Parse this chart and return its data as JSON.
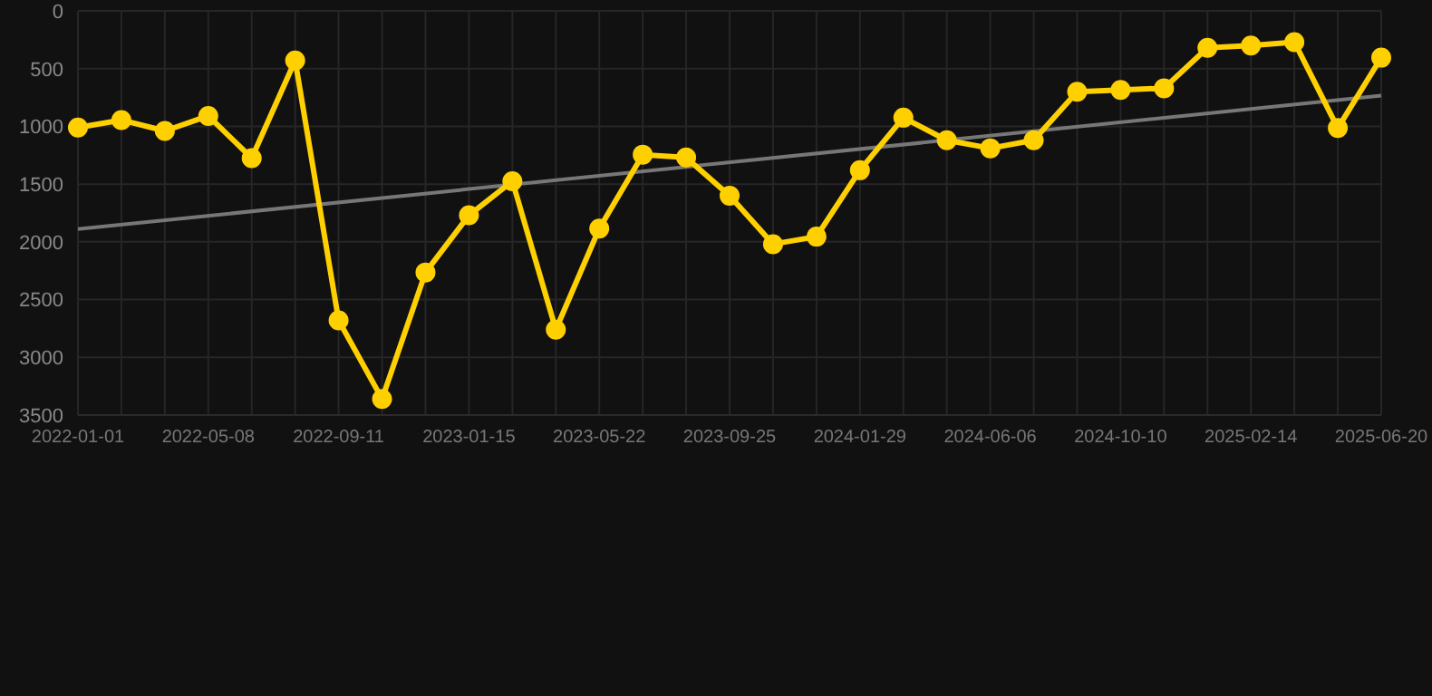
{
  "chart_data": {
    "type": "line",
    "categories": [
      "2022-01-01",
      null,
      null,
      "2022-05-08",
      null,
      null,
      "2022-09-11",
      null,
      null,
      "2023-01-15",
      null,
      null,
      "2023-05-22",
      null,
      null,
      "2023-09-25",
      null,
      null,
      "2024-01-29",
      null,
      null,
      "2024-06-06",
      null,
      null,
      "2024-10-10",
      null,
      null,
      "2025-02-14",
      null,
      null,
      "2025-06-20"
    ],
    "series": [
      {
        "color": "#777777",
        "marker": "none",
        "values": [
          1890,
          null,
          null,
          null,
          null,
          null,
          null,
          null,
          null,
          null,
          null,
          null,
          null,
          null,
          null,
          null,
          null,
          null,
          null,
          null,
          null,
          null,
          null,
          null,
          null,
          null,
          null,
          null,
          null,
          null,
          734
        ]
      },
      {
        "color": "#ffd000",
        "marker": "circle",
        "values": [
          1010,
          945,
          1040,
          910,
          1275,
          430,
          2680,
          3360,
          2265,
          1770,
          1475,
          2760,
          1885,
          1245,
          1270,
          1600,
          2020,
          1955,
          1380,
          925,
          1120,
          1190,
          1120,
          700,
          685,
          670,
          320,
          300,
          270,
          1015,
          405
        ]
      }
    ],
    "ylim": [
      3500,
      0
    ],
    "yticks": [
      0,
      500,
      1000,
      1500,
      2000,
      2500,
      3000,
      3500
    ],
    "grid": true,
    "legend": false
  }
}
